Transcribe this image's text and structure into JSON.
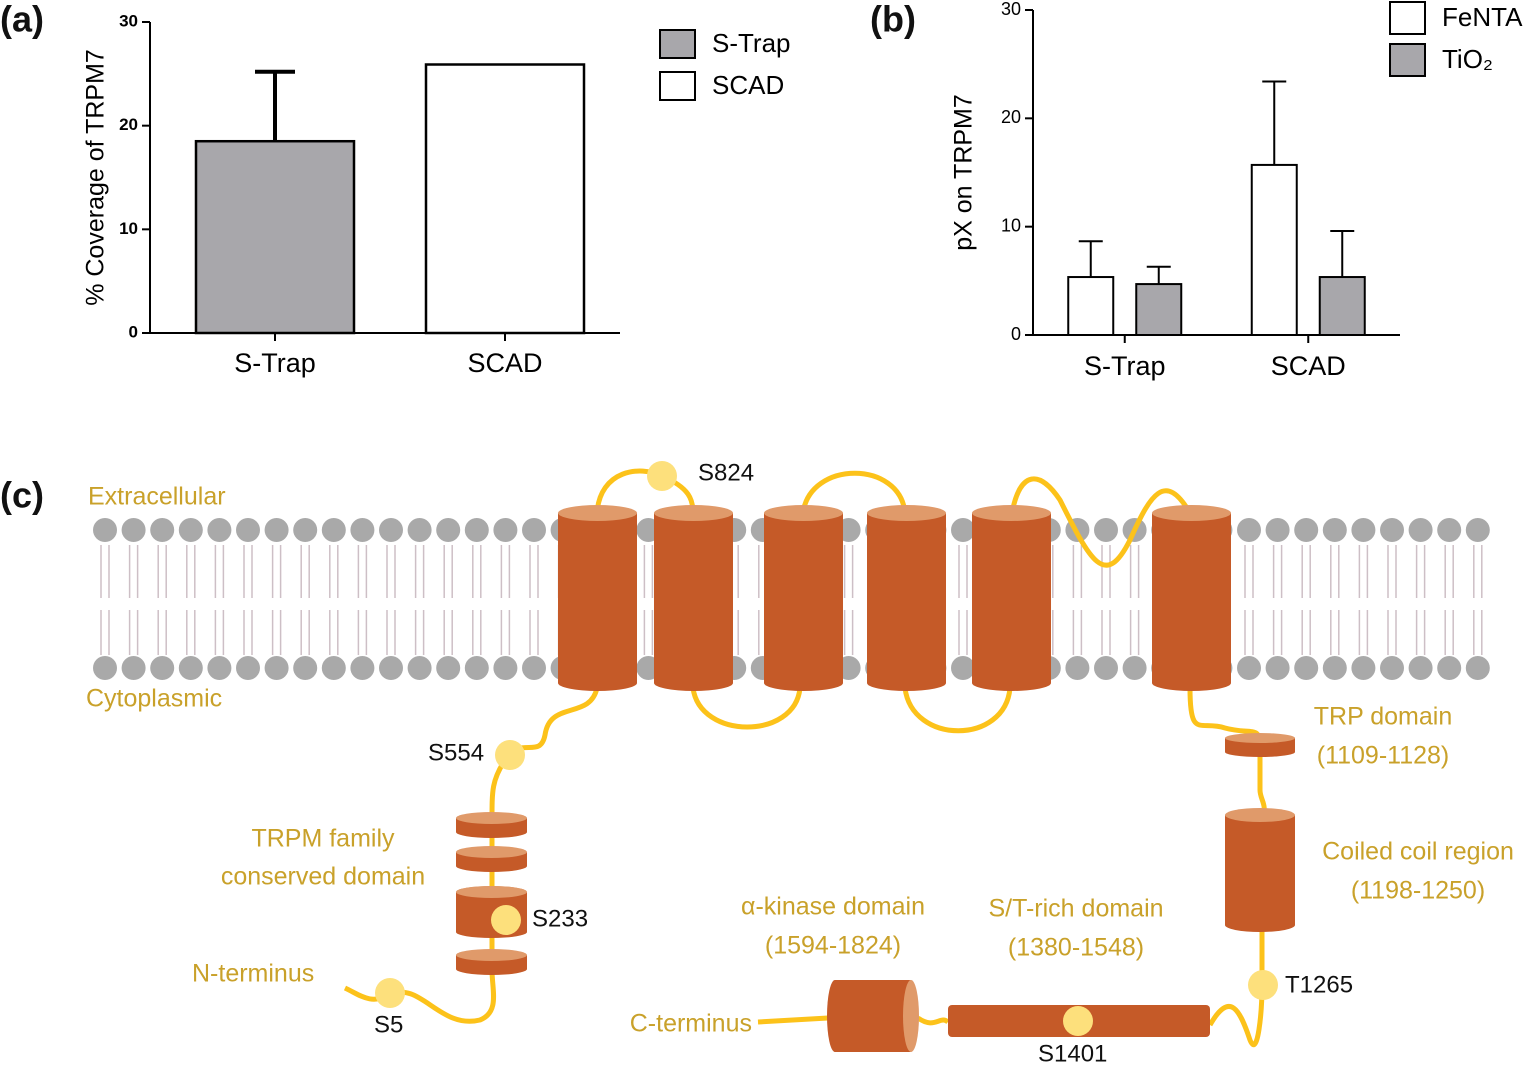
{
  "chart_data": [
    {
      "type": "bar",
      "label": "(a)",
      "y_label": "% Coverage of TRPM7",
      "categories": [
        "S-Trap",
        "SCAD"
      ],
      "values": [
        18.5,
        25.9
      ],
      "errors": [
        6.7,
        null
      ],
      "colors": [
        "#a8a7ab",
        "#ffffff"
      ],
      "legend": "top-right",
      "ylim": [
        0,
        30
      ],
      "yticks": [
        0,
        10,
        20,
        30
      ]
    },
    {
      "type": "grouped-bar",
      "label": "(b)",
      "y_label": "pX on TRPM7",
      "categories": [
        "S-Trap",
        "SCAD"
      ],
      "series": [
        {
          "name": "FeNTA",
          "color": "#ffffff",
          "values": [
            5.35,
            15.7
          ],
          "errors": [
            3.3,
            7.7
          ]
        },
        {
          "name": "TiO₂",
          "color": "#a8a7ab",
          "values": [
            4.7,
            5.35
          ],
          "errors": [
            1.6,
            4.25
          ]
        }
      ],
      "legend": "top-right",
      "ylim": [
        0,
        30
      ],
      "yticks": [
        0,
        10,
        20,
        30
      ]
    }
  ],
  "diagram": {
    "label": "(c)",
    "regions": {
      "extracellular": "Extracellular",
      "cytoplasmic": "Cytoplasmic"
    },
    "termini": {
      "n": "N-terminus",
      "c": "C-terminus"
    },
    "sites": {
      "s824": "S824",
      "s554": "S554",
      "s233": "S233",
      "s5": "S5",
      "t1265": "T1265",
      "s1401": "S1401"
    },
    "domains": {
      "trpm": [
        "TRPM family",
        "conserved domain"
      ],
      "trp": [
        "TRP domain",
        "(1109-1128)"
      ],
      "coiled": [
        "Coiled coil region",
        "(1198-1250)"
      ],
      "kinase": [
        "α-kinase domain",
        "(1594-1824)"
      ],
      "st": [
        "S/T-rich domain",
        "(1380-1548)"
      ]
    }
  }
}
